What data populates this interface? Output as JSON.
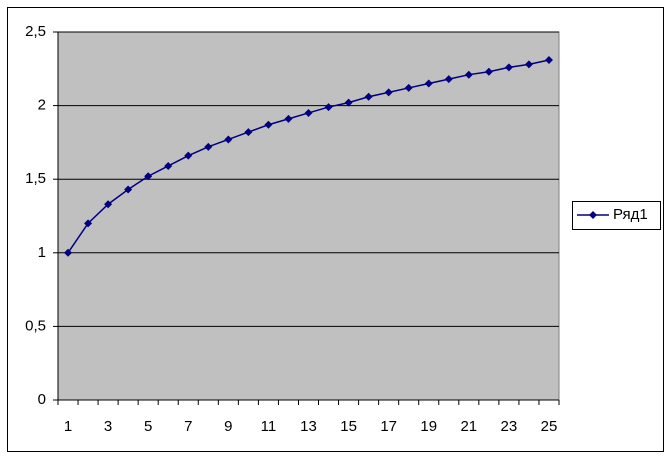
{
  "chart_data": {
    "type": "line",
    "categories": [
      "1",
      null,
      "3",
      null,
      "5",
      null,
      "7",
      null,
      "9",
      null,
      "11",
      null,
      "13",
      null,
      "15",
      null,
      "17",
      null,
      "19",
      null,
      "21",
      null,
      "23",
      null,
      "25"
    ],
    "series": [
      {
        "name": "Ряд1",
        "color": "#000080",
        "values": [
          1,
          1.2,
          1.33,
          1.43,
          1.52,
          1.59,
          1.66,
          1.72,
          1.77,
          1.82,
          1.87,
          1.91,
          1.95,
          1.99,
          2.02,
          2.06,
          2.09,
          2.12,
          2.15,
          2.18,
          2.21,
          2.23,
          2.26,
          2.28,
          2.31
        ]
      }
    ],
    "ylim": [
      0,
      2.5
    ],
    "yticks": [
      0,
      {
        "value": 0.5,
        "label": "0,5"
      },
      1,
      {
        "value": 1.5,
        "label": "1,5"
      },
      2,
      {
        "value": 2.5,
        "label": "2,5"
      }
    ],
    "grid": true,
    "legend": "right",
    "plot_background": "#c0c0c0"
  }
}
